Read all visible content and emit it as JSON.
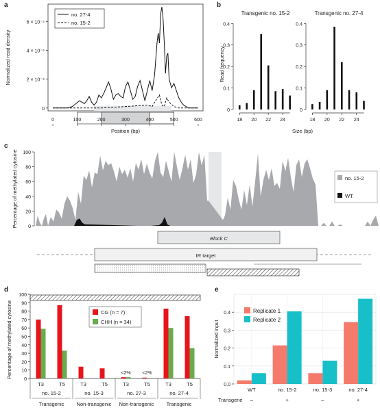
{
  "colors": {
    "black": "#111111",
    "gray": "#a7a9ac",
    "red": "#e8141c",
    "green": "#6aab4f",
    "salmon": "#f47a6b",
    "teal": "#17bfc9",
    "lightgray": "#e6e7e8"
  },
  "panels": {
    "a": "a",
    "b": "b",
    "c": "c",
    "d": "d",
    "e": "e"
  },
  "chart_data": [
    {
      "id": "a",
      "type": "line",
      "xlabel": "Position (bp)",
      "ylabel": "Normalized read density",
      "xticks": [
        0,
        100,
        200,
        300,
        400,
        500,
        600
      ],
      "yticks": [
        "0",
        "2 × 10⁻⁴",
        "4 × 10⁻⁴",
        "6 × 10⁻⁴"
      ],
      "ytick_values": [
        0,
        0.0002,
        0.0004,
        0.0006
      ],
      "xlim": [
        -20,
        620
      ],
      "ylim": [
        -2e-05,
        0.00072
      ],
      "series": [
        {
          "name": "no. 27-4",
          "style": "solid",
          "x": [
            0,
            20,
            40,
            60,
            80,
            95,
            110,
            120,
            130,
            140,
            150,
            160,
            170,
            180,
            190,
            200,
            210,
            220,
            230,
            240,
            250,
            260,
            270,
            280,
            290,
            300,
            310,
            320,
            330,
            340,
            350,
            360,
            370,
            380,
            390,
            400,
            410,
            420,
            430,
            435,
            440,
            445,
            450,
            455,
            460,
            465,
            470,
            475,
            480,
            490,
            500,
            510,
            520,
            530,
            540,
            560,
            580,
            600
          ],
          "y": [
            0,
            0,
            0,
            0,
            1e-05,
            3e-05,
            5e-05,
            4e-05,
            3e-05,
            5e-05,
            8e-05,
            4e-05,
            2e-05,
            4e-05,
            9e-05,
            7e-05,
            0.0001,
            0.00014,
            0.00018,
            0.00013,
            6e-05,
            9e-05,
            0.0001,
            8e-05,
            7e-05,
            0.00015,
            0.00018,
            0.00012,
            6e-05,
            8e-05,
            0.00015,
            0.00019,
            0.00012,
            5e-05,
            0.00012,
            0.00019,
            0.00012,
            0.00023,
            0.00045,
            0.00052,
            0.00045,
            0.00065,
            0.0007,
            0.00062,
            0.00045,
            0.00024,
            0.00036,
            0.00038,
            0.0002,
            0.00014,
            0.00017,
            0.00012,
            7e-05,
            4e-05,
            2e-05,
            0,
            0,
            0
          ]
        },
        {
          "name": "no. 15-2",
          "style": "dashed",
          "x": [
            0,
            100,
            200,
            300,
            390,
            410,
            420,
            440,
            450,
            460,
            470,
            480,
            500,
            520,
            600
          ],
          "y": [
            0,
            0,
            0,
            1e-05,
            2e-05,
            1e-05,
            4e-05,
            9e-05,
            2e-05,
            1e-05,
            7e-05,
            4e-05,
            1e-05,
            0,
            0
          ]
        }
      ],
      "legend": [
        "no. 27-4",
        "no. 15-2"
      ],
      "annotation_ranges": [
        [
          100,
          200
        ],
        [
          200,
          400
        ],
        [
          400,
          500
        ]
      ]
    },
    {
      "id": "b",
      "type": "bar",
      "ylabel": "Read frequency",
      "xlabel": "Size (bp)",
      "subplots": [
        {
          "title": "Transgenic no. 15-2",
          "x": [
            18,
            19,
            20,
            21,
            22,
            23,
            24,
            25
          ],
          "values": [
            0.02,
            0.03,
            0.09,
            0.35,
            0.205,
            0.085,
            0.095,
            0.065
          ]
        },
        {
          "title": "Transgenic no. 27-4",
          "x": [
            18,
            19,
            20,
            21,
            22,
            23,
            24,
            25
          ],
          "values": [
            0.025,
            0.035,
            0.09,
            0.385,
            0.22,
            0.09,
            0.08,
            0.04
          ]
        }
      ],
      "xticks": [
        18,
        20,
        22,
        24
      ],
      "yticks": [
        0,
        0.1,
        0.2,
        0.3,
        0.4
      ],
      "ylim": [
        0,
        0.42
      ]
    },
    {
      "id": "c",
      "type": "area",
      "ylabel": "Percentage of methylated cytosine",
      "yticks": [
        0,
        20,
        40,
        60,
        80,
        100
      ],
      "ylim": [
        0,
        100
      ],
      "series": [
        {
          "name": "no. 15-2",
          "color": "gray"
        },
        {
          "name": "WT",
          "color": "black"
        }
      ],
      "tracks": {
        "block_c": "Block C",
        "ir_target": "IR target"
      }
    },
    {
      "id": "d",
      "type": "bar",
      "ylabel": "Percentage of methylated cytosine",
      "yticks": [
        0,
        10,
        20,
        30,
        40,
        50,
        60,
        70,
        80,
        90,
        100
      ],
      "ylim": [
        0,
        100
      ],
      "series": [
        {
          "name": "CG (n = 7)",
          "color": "red",
          "values": [
            70,
            87,
            14,
            12,
            1.5,
            1,
            83,
            74
          ]
        },
        {
          "name": "CHH (n = 34)",
          "color": "green",
          "values": [
            59,
            33,
            0,
            0,
            1.5,
            0.5,
            60,
            36
          ]
        }
      ],
      "categories": [
        "T3",
        "T5",
        "T3",
        "T5",
        "T3",
        "T5",
        "T3",
        "T5"
      ],
      "lines": [
        "no. 15-2",
        "no. 15-3",
        "no. 27-3",
        "no. 27-4"
      ],
      "groups": [
        "Transgenic",
        "Non-transgenic",
        "Non-transgenic",
        "Transgenic"
      ],
      "annotations": [
        "<2%",
        "<2%"
      ]
    },
    {
      "id": "e",
      "type": "bar",
      "ylabel": "Normalized input",
      "categories": [
        "WT",
        "no. 15-2",
        "no. 15-3",
        "no. 27-4"
      ],
      "transgene_label": "Transgene",
      "transgene": [
        "–",
        "+",
        "–",
        "+"
      ],
      "series": [
        {
          "name": "Replicate 1",
          "values": [
            0.02,
            0.215,
            0.06,
            0.345
          ]
        },
        {
          "name": "Replicate 2",
          "values": [
            0.06,
            0.405,
            0.13,
            0.475
          ]
        }
      ],
      "yticks": [
        0.0,
        0.1,
        0.2,
        0.3,
        0.4
      ],
      "ylim": [
        0,
        0.5
      ]
    }
  ]
}
